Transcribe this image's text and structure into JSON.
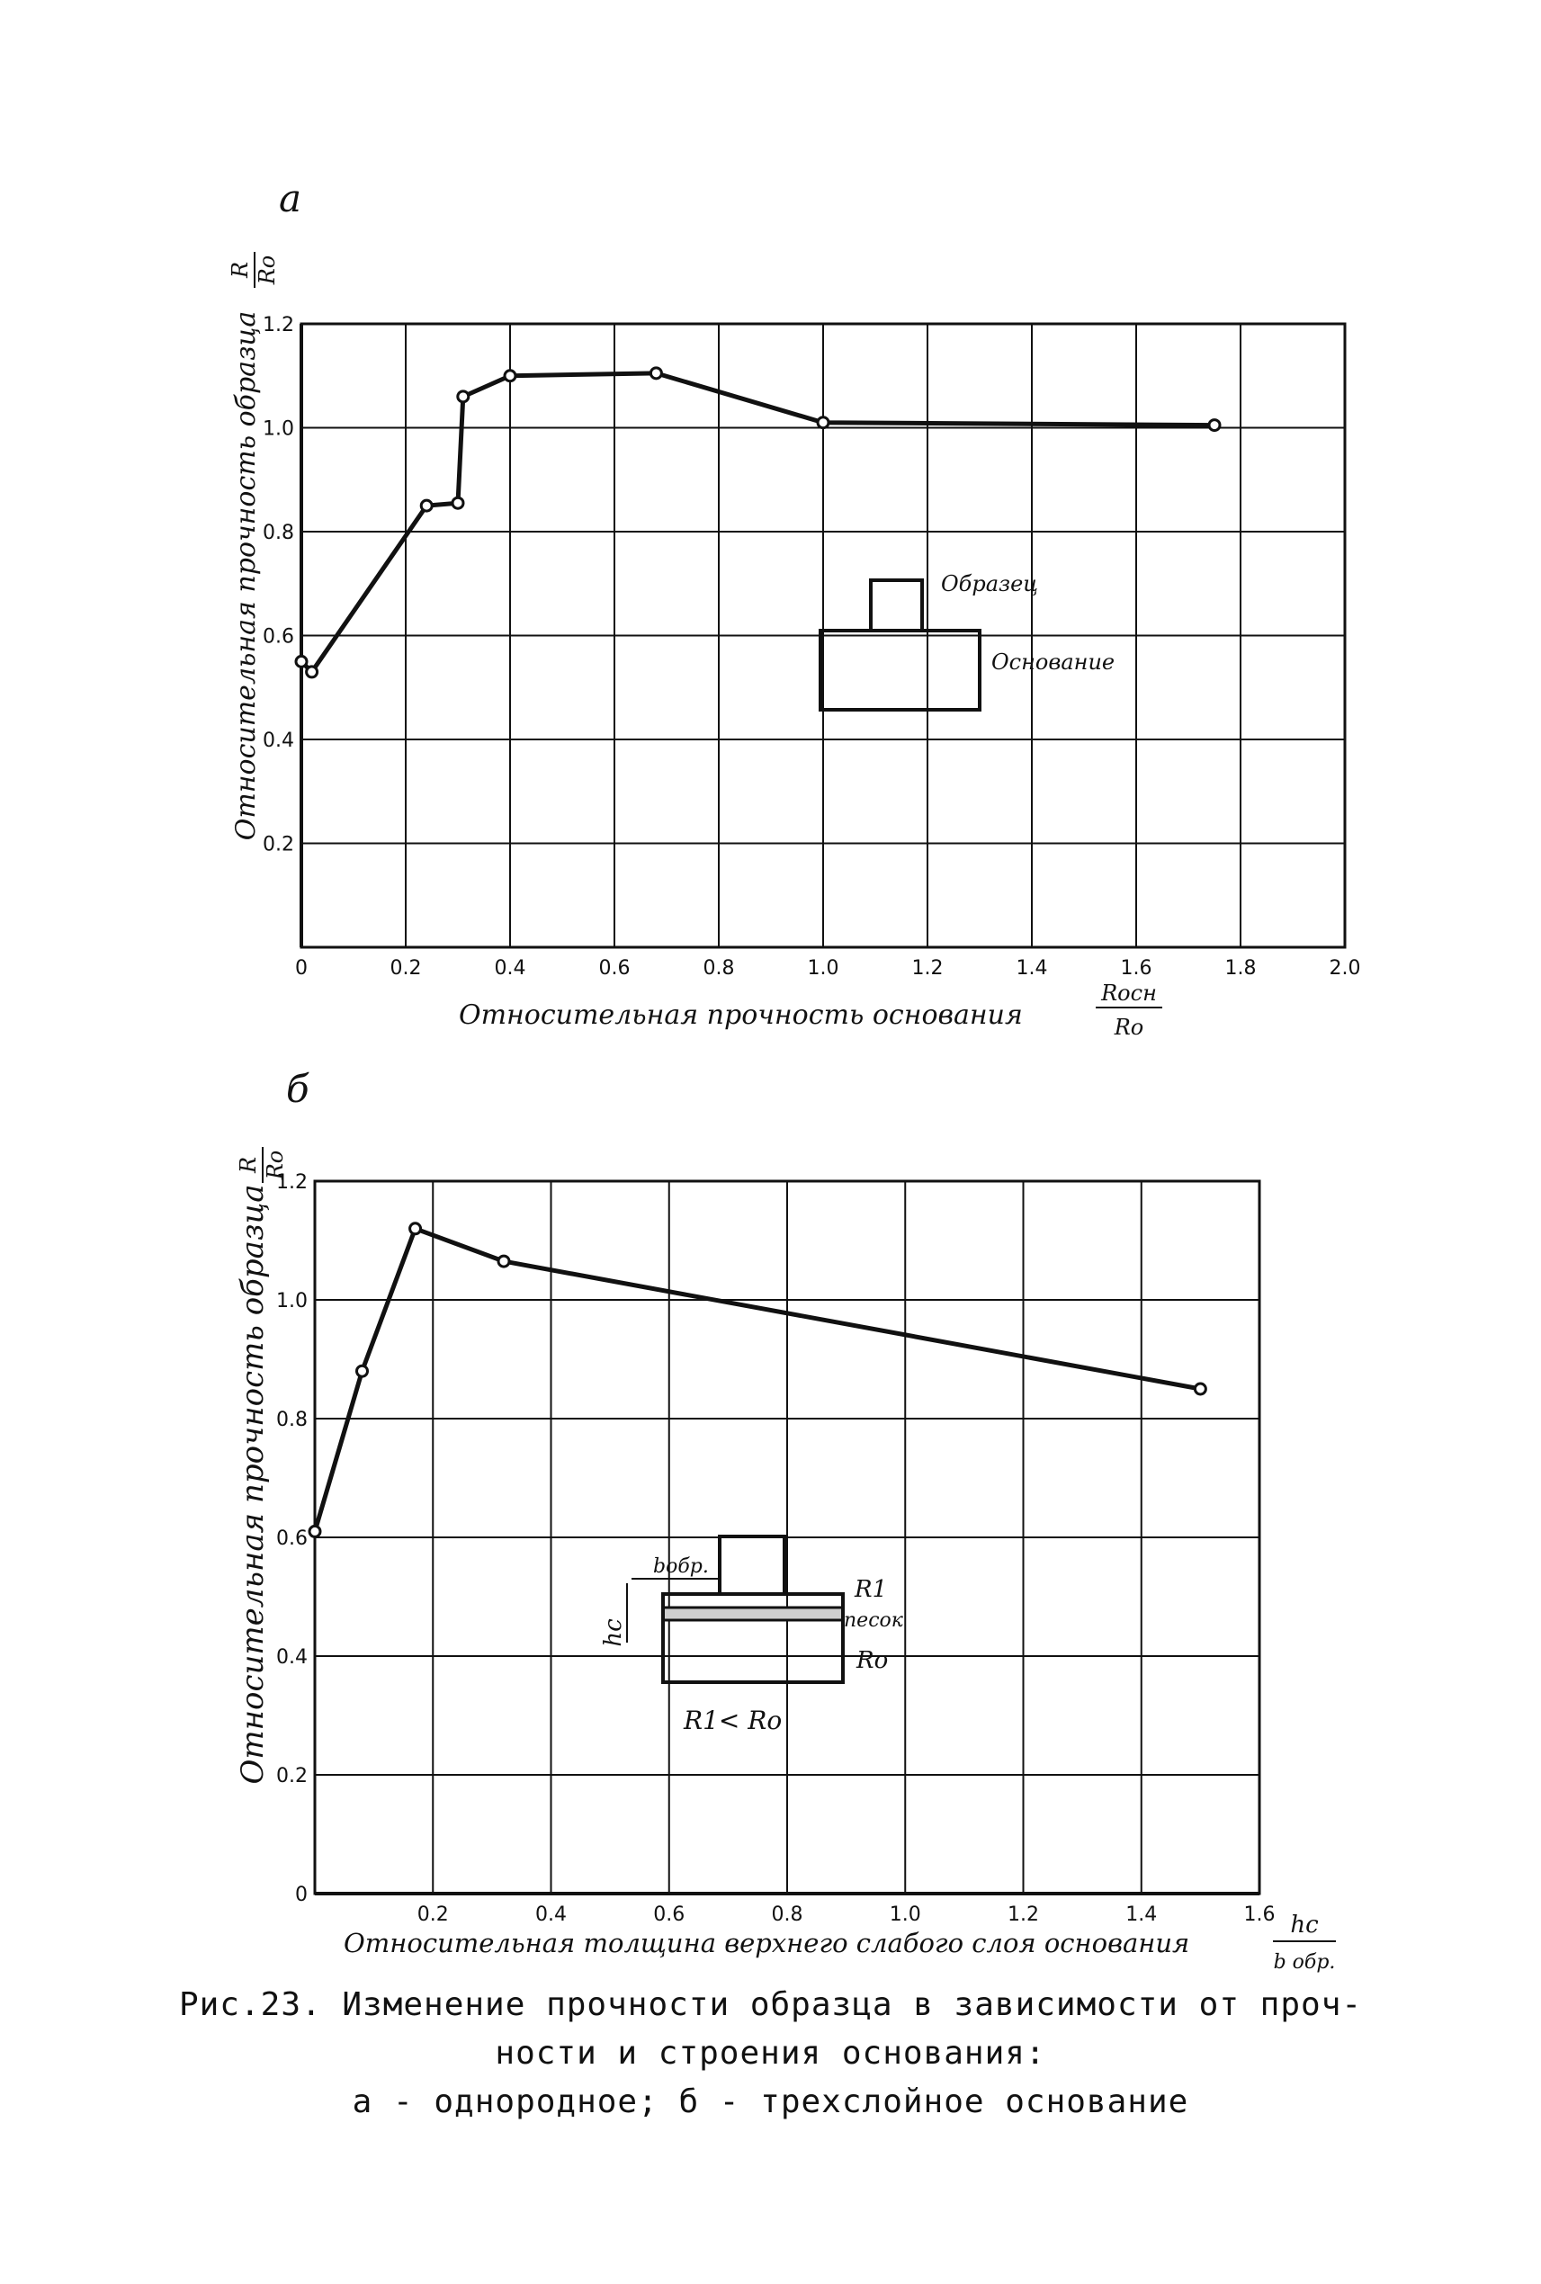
{
  "charts": [
    {
      "panel_label": "а",
      "type": "line",
      "x": [
        0.0,
        0.02,
        0.24,
        0.3,
        0.31,
        0.4,
        0.68,
        1.0,
        1.75
      ],
      "y": [
        0.55,
        0.53,
        0.85,
        0.855,
        1.06,
        1.1,
        1.105,
        1.01,
        1.005
      ],
      "xlim": [
        0,
        2.0
      ],
      "ylim": [
        0,
        1.2
      ],
      "x_ticks": [
        0,
        0.2,
        0.4,
        0.6,
        0.8,
        1.0,
        1.2,
        1.4,
        1.6,
        1.8,
        2.0
      ],
      "x_tick_labels": [
        "0",
        "0.2",
        "0.4",
        "0.6",
        "0.8",
        "1.0",
        "1.2",
        "1.4",
        "1.6",
        "1.8",
        "2.0"
      ],
      "y_ticks": [
        0.2,
        0.4,
        0.6,
        0.8,
        1.0,
        1.2
      ],
      "y_tick_labels": [
        "0.2",
        "0.4",
        "0.6",
        "0.8",
        "1.0",
        "1.2"
      ],
      "xlabel": "Относительная прочность основания",
      "xlabel_num": "Rосн",
      "xlabel_den": "Ro",
      "ylabel": "Относительная прочность образца",
      "ylabel_num": "R",
      "ylabel_den": "Ro",
      "grid": true,
      "inset_labels": {
        "sample": "Образец",
        "base": "Основание"
      }
    },
    {
      "panel_label": "б",
      "type": "line",
      "x": [
        0.0,
        0.08,
        0.17,
        0.32,
        1.5
      ],
      "y": [
        0.61,
        0.88,
        1.12,
        1.065,
        0.85
      ],
      "xlim": [
        0,
        1.6
      ],
      "ylim": [
        0,
        1.2
      ],
      "x_ticks": [
        0.2,
        0.4,
        0.6,
        0.8,
        1.0,
        1.2,
        1.4,
        1.6
      ],
      "x_tick_labels": [
        "0.2",
        "0.4",
        "0.6",
        "0.8",
        "1.0",
        "1.2",
        "1.4",
        "1.6"
      ],
      "y_ticks": [
        0,
        0.2,
        0.4,
        0.6,
        0.8,
        1.0,
        1.2
      ],
      "y_tick_labels": [
        "0",
        "0.2",
        "0.4",
        "0.6",
        "0.8",
        "1.0",
        "1.2"
      ],
      "xlabel": "Относительная толщина верхнего слабого слоя основания",
      "xlabel_num": "hc",
      "xlabel_den": "b обр.",
      "ylabel": "Относительная прочность образца",
      "ylabel_num": "R",
      "ylabel_den": "Ro",
      "grid": true,
      "inset_labels": {
        "width": "bобр.",
        "r1": "R1",
        "sand": "песок",
        "r0": "Ro",
        "hc": "hc",
        "relation": "R1< Ro"
      }
    }
  ],
  "caption": {
    "line1": "Рис.23. Изменение прочности образца в зависимости от проч-",
    "line2": "ности и строения основания:",
    "line3": "а - однородное; б - трехслойное основание"
  }
}
